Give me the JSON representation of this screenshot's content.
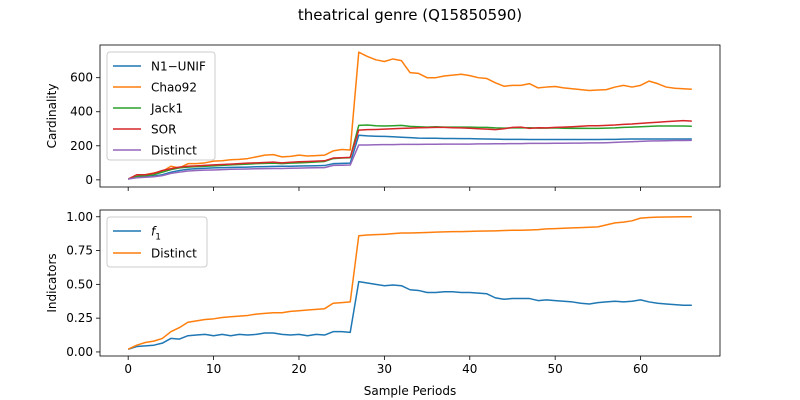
{
  "figure": {
    "title": "theatrical genre (Q15850590)"
  },
  "chart_data": [
    {
      "type": "line",
      "ylabel": "Cardinality",
      "xlabel": "",
      "xlim": [
        -3.3,
        69.3
      ],
      "ylim": [
        -42,
        792
      ],
      "xticks": [
        0,
        10,
        20,
        30,
        40,
        50,
        60
      ],
      "yticks": [
        0,
        200,
        400,
        600
      ],
      "grid": false,
      "legend_position": "upper-left",
      "x": [
        0,
        1,
        2,
        3,
        4,
        5,
        6,
        7,
        8,
        9,
        10,
        11,
        12,
        13,
        14,
        15,
        16,
        17,
        18,
        19,
        20,
        21,
        22,
        23,
        24,
        25,
        26,
        27,
        28,
        29,
        30,
        31,
        32,
        33,
        34,
        35,
        36,
        37,
        38,
        39,
        40,
        41,
        42,
        43,
        44,
        45,
        46,
        47,
        48,
        49,
        50,
        51,
        52,
        53,
        54,
        55,
        56,
        57,
        58,
        59,
        60,
        61,
        62,
        63,
        64,
        65,
        66
      ],
      "series": [
        {
          "name": "N1−UNIF",
          "color": "#1f77b4",
          "values": [
            5,
            15,
            18,
            22,
            30,
            45,
            55,
            62,
            66,
            68,
            70,
            72,
            73,
            74,
            75,
            77,
            78,
            79,
            80,
            80,
            81,
            82,
            83,
            84,
            95,
            97,
            98,
            262,
            258,
            256,
            255,
            253,
            250,
            248,
            245,
            244,
            244,
            243,
            243,
            242,
            242,
            241,
            240,
            239,
            238,
            238,
            238,
            237,
            237,
            237,
            237,
            237,
            237,
            237,
            237,
            237,
            238,
            238,
            239,
            240,
            240,
            240,
            240,
            240,
            240,
            240,
            240
          ]
        },
        {
          "name": "Chao92",
          "color": "#ff7f0e",
          "values": [
            5,
            20,
            30,
            40,
            50,
            80,
            70,
            95,
            95,
            100,
            110,
            112,
            118,
            120,
            125,
            135,
            145,
            148,
            135,
            138,
            145,
            140,
            142,
            145,
            170,
            178,
            175,
            750,
            725,
            705,
            695,
            710,
            700,
            630,
            625,
            600,
            600,
            610,
            615,
            620,
            612,
            600,
            595,
            570,
            550,
            555,
            555,
            565,
            540,
            545,
            548,
            540,
            535,
            530,
            525,
            528,
            530,
            545,
            555,
            545,
            555,
            580,
            565,
            545,
            538,
            535,
            532
          ]
        },
        {
          "name": "Jack1",
          "color": "#2ca02c",
          "values": [
            5,
            20,
            25,
            30,
            45,
            60,
            70,
            75,
            78,
            80,
            82,
            85,
            88,
            90,
            92,
            95,
            97,
            98,
            95,
            98,
            100,
            102,
            105,
            108,
            125,
            128,
            130,
            320,
            322,
            318,
            316,
            318,
            320,
            314,
            312,
            310,
            312,
            310,
            310,
            310,
            310,
            308,
            308,
            305,
            304,
            305,
            305,
            306,
            304,
            304,
            305,
            303,
            302,
            303,
            302,
            302,
            304,
            305,
            308,
            310,
            312,
            314,
            316,
            316,
            316,
            316,
            315
          ]
        },
        {
          "name": "SOR",
          "color": "#d62728",
          "values": [
            5,
            30,
            30,
            38,
            55,
            65,
            75,
            80,
            82,
            85,
            88,
            90,
            92,
            95,
            98,
            100,
            102,
            104,
            100,
            103,
            106,
            108,
            110,
            112,
            128,
            130,
            132,
            292,
            295,
            296,
            298,
            300,
            302,
            304,
            306,
            307,
            308,
            308,
            306,
            305,
            303,
            300,
            298,
            295,
            300,
            308,
            310,
            302,
            306,
            305,
            308,
            310,
            312,
            315,
            318,
            318,
            320,
            322,
            326,
            328,
            332,
            335,
            338,
            342,
            345,
            348,
            345
          ]
        },
        {
          "name": "Distinct",
          "color": "#9467bd",
          "values": [
            5,
            12,
            15,
            18,
            25,
            38,
            45,
            52,
            55,
            57,
            58,
            60,
            62,
            63,
            64,
            65,
            66,
            67,
            67,
            68,
            69,
            70,
            71,
            72,
            85,
            86,
            87,
            205,
            205,
            206,
            207,
            207,
            208,
            208,
            208,
            209,
            209,
            210,
            210,
            210,
            210,
            211,
            211,
            212,
            212,
            213,
            213,
            214,
            214,
            214,
            215,
            215,
            216,
            216,
            217,
            217,
            218,
            220,
            222,
            224,
            226,
            228,
            229,
            230,
            231,
            231,
            232
          ]
        }
      ]
    },
    {
      "type": "line",
      "ylabel": "Indicators",
      "xlabel": "Sample Periods",
      "xlim": [
        -3.3,
        69.3
      ],
      "ylim": [
        -0.03,
        1.05
      ],
      "xticks": [
        0,
        10,
        20,
        30,
        40,
        50,
        60
      ],
      "xtick_labels": [
        "0",
        "10",
        "20",
        "30",
        "40",
        "50",
        "60"
      ],
      "yticks": [
        0.0,
        0.25,
        0.5,
        0.75,
        1.0
      ],
      "ytick_labels": [
        "0.00",
        "0.25",
        "0.50",
        "0.75",
        "1.00"
      ],
      "grid": false,
      "legend_position": "upper-left",
      "x": [
        0,
        1,
        2,
        3,
        4,
        5,
        6,
        7,
        8,
        9,
        10,
        11,
        12,
        13,
        14,
        15,
        16,
        17,
        18,
        19,
        20,
        21,
        22,
        23,
        24,
        25,
        26,
        27,
        28,
        29,
        30,
        31,
        32,
        33,
        34,
        35,
        36,
        37,
        38,
        39,
        40,
        41,
        42,
        43,
        44,
        45,
        46,
        47,
        48,
        49,
        50,
        51,
        52,
        53,
        54,
        55,
        56,
        57,
        58,
        59,
        60,
        61,
        62,
        63,
        64,
        65,
        66
      ],
      "series": [
        {
          "name": "f1",
          "name_base": "f",
          "name_sub": "1",
          "color": "#1f77b4",
          "values": [
            0.02,
            0.04,
            0.045,
            0.05,
            0.065,
            0.1,
            0.095,
            0.12,
            0.125,
            0.13,
            0.12,
            0.13,
            0.12,
            0.13,
            0.125,
            0.13,
            0.14,
            0.14,
            0.13,
            0.125,
            0.13,
            0.12,
            0.13,
            0.125,
            0.15,
            0.15,
            0.145,
            0.52,
            0.51,
            0.5,
            0.49,
            0.495,
            0.49,
            0.46,
            0.455,
            0.44,
            0.44,
            0.445,
            0.445,
            0.44,
            0.44,
            0.435,
            0.43,
            0.4,
            0.39,
            0.395,
            0.395,
            0.395,
            0.38,
            0.385,
            0.38,
            0.375,
            0.37,
            0.36,
            0.355,
            0.365,
            0.37,
            0.375,
            0.37,
            0.375,
            0.385,
            0.37,
            0.36,
            0.355,
            0.35,
            0.345,
            0.345
          ]
        },
        {
          "name": "Distinct",
          "color": "#ff7f0e",
          "values": [
            0.02,
            0.05,
            0.07,
            0.08,
            0.1,
            0.15,
            0.18,
            0.22,
            0.23,
            0.24,
            0.245,
            0.255,
            0.26,
            0.265,
            0.27,
            0.28,
            0.285,
            0.29,
            0.29,
            0.3,
            0.305,
            0.31,
            0.315,
            0.32,
            0.36,
            0.365,
            0.37,
            0.86,
            0.865,
            0.868,
            0.87,
            0.875,
            0.88,
            0.88,
            0.882,
            0.884,
            0.886,
            0.888,
            0.89,
            0.89,
            0.892,
            0.894,
            0.895,
            0.896,
            0.898,
            0.9,
            0.9,
            0.902,
            0.905,
            0.91,
            0.912,
            0.915,
            0.918,
            0.92,
            0.922,
            0.925,
            0.94,
            0.955,
            0.96,
            0.97,
            0.99,
            0.995,
            0.997,
            0.998,
            0.999,
            1.0,
            1.0
          ]
        }
      ]
    }
  ]
}
